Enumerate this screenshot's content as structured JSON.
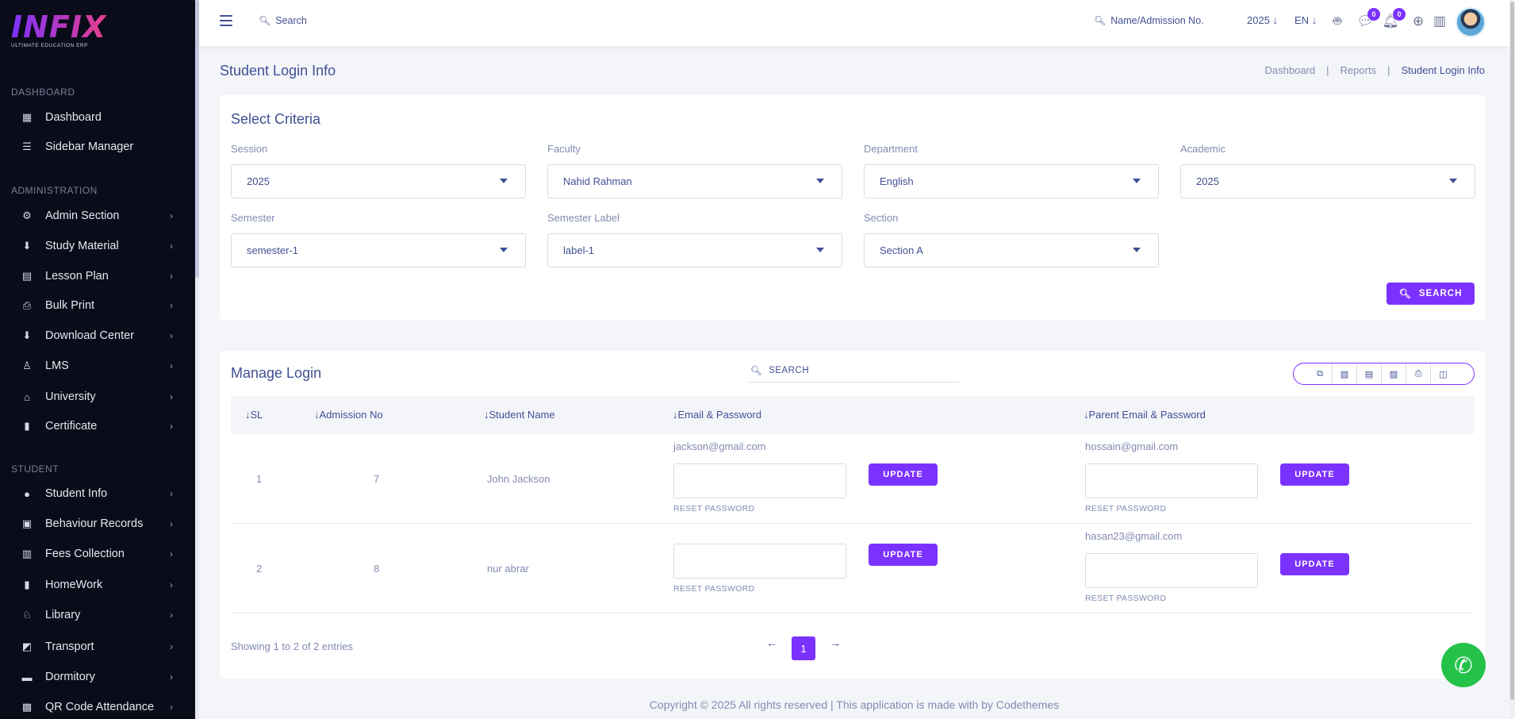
{
  "brand": {
    "name": "INFIX",
    "tagline": "ULTIMATE EDUCATION ERP"
  },
  "sidebar": {
    "sections": [
      {
        "title": "DASHBOARD",
        "items": [
          {
            "label": "Dashboard",
            "icon": "grid-icon",
            "chev": false
          },
          {
            "label": "Sidebar Manager",
            "icon": "list-icon",
            "chev": false
          }
        ]
      },
      {
        "title": "ADMINISTRATION",
        "items": [
          {
            "label": "Admin Section",
            "icon": "admin-icon",
            "chev": true
          },
          {
            "label": "Study Material",
            "icon": "download-icon",
            "chev": true
          },
          {
            "label": "Lesson Plan",
            "icon": "calendar-icon",
            "chev": true
          },
          {
            "label": "Bulk Print",
            "icon": "printer-icon",
            "chev": true
          },
          {
            "label": "Download Center",
            "icon": "download-icon",
            "chev": true
          },
          {
            "label": "LMS",
            "icon": "lms-icon",
            "chev": true
          },
          {
            "label": "University",
            "icon": "bank-icon",
            "chev": true
          },
          {
            "label": "Certificate",
            "icon": "book-icon",
            "chev": true
          }
        ]
      },
      {
        "title": "STUDENT",
        "items": [
          {
            "label": "Student Info",
            "icon": "user-icon",
            "chev": true
          },
          {
            "label": "Behaviour Records",
            "icon": "records-icon",
            "chev": true
          },
          {
            "label": "Fees Collection",
            "icon": "fees-icon",
            "chev": true
          },
          {
            "label": "HomeWork",
            "icon": "book-icon",
            "chev": true
          },
          {
            "label": "Library",
            "icon": "library-icon",
            "chev": true
          },
          {
            "label": "Transport",
            "icon": "bus-icon",
            "chev": true
          },
          {
            "label": "Dormitory",
            "icon": "bed-icon",
            "chev": true
          },
          {
            "label": "QR Code Attendance",
            "icon": "qr-icon",
            "chev": true
          }
        ]
      }
    ]
  },
  "header": {
    "search_placeholder": "Search",
    "name_search_placeholder": "Name/Admission No.",
    "year": "2025",
    "language": "EN",
    "messages_count": "0",
    "notifications_count": "0"
  },
  "page": {
    "title": "Student Login Info",
    "breadcrumb": [
      "Dashboard",
      "Reports",
      "Student Login Info"
    ]
  },
  "criteria": {
    "title": "Select Criteria",
    "fields": {
      "session": {
        "label": "Session",
        "value": "2025"
      },
      "faculty": {
        "label": "Faculty",
        "value": "Nahid Rahman"
      },
      "department": {
        "label": "Department",
        "value": "English"
      },
      "academic": {
        "label": "Academic",
        "value": "2025"
      },
      "semester": {
        "label": "Semester",
        "value": "semester-1"
      },
      "semester_label": {
        "label": "Semester Label",
        "value": "label-1"
      },
      "section": {
        "label": "Section",
        "value": "Section A"
      }
    },
    "search_button": "SEARCH"
  },
  "manage": {
    "title": "Manage Login",
    "search_placeholder": "SEARCH",
    "columns": [
      "SL",
      "Admission No",
      "Student Name",
      "Email & Password",
      "Parent Email & Password"
    ],
    "rows": [
      {
        "sl": "1",
        "admission_no": "7",
        "name": "John Jackson",
        "email": "jackson@gmail.com",
        "parent_email": "hossain@gmail.com"
      },
      {
        "sl": "2",
        "admission_no": "8",
        "name": "nur abrar",
        "email": "",
        "parent_email": "hasan23@gmail.com"
      }
    ],
    "update_label": "UPDATE",
    "reset_label": "RESET PASSWORD",
    "entries_text": "Showing 1 to 2 of 2 entries",
    "current_page": "1"
  },
  "footer": {
    "text": "Copyright © 2025 All rights reserved | This application is made with by Codethemes"
  },
  "colors": {
    "accent": "#7c32ff",
    "sidebar_bg": "#0b0c1a",
    "text": "#415094",
    "muted": "#828bb2",
    "whatsapp": "#25c24a"
  }
}
